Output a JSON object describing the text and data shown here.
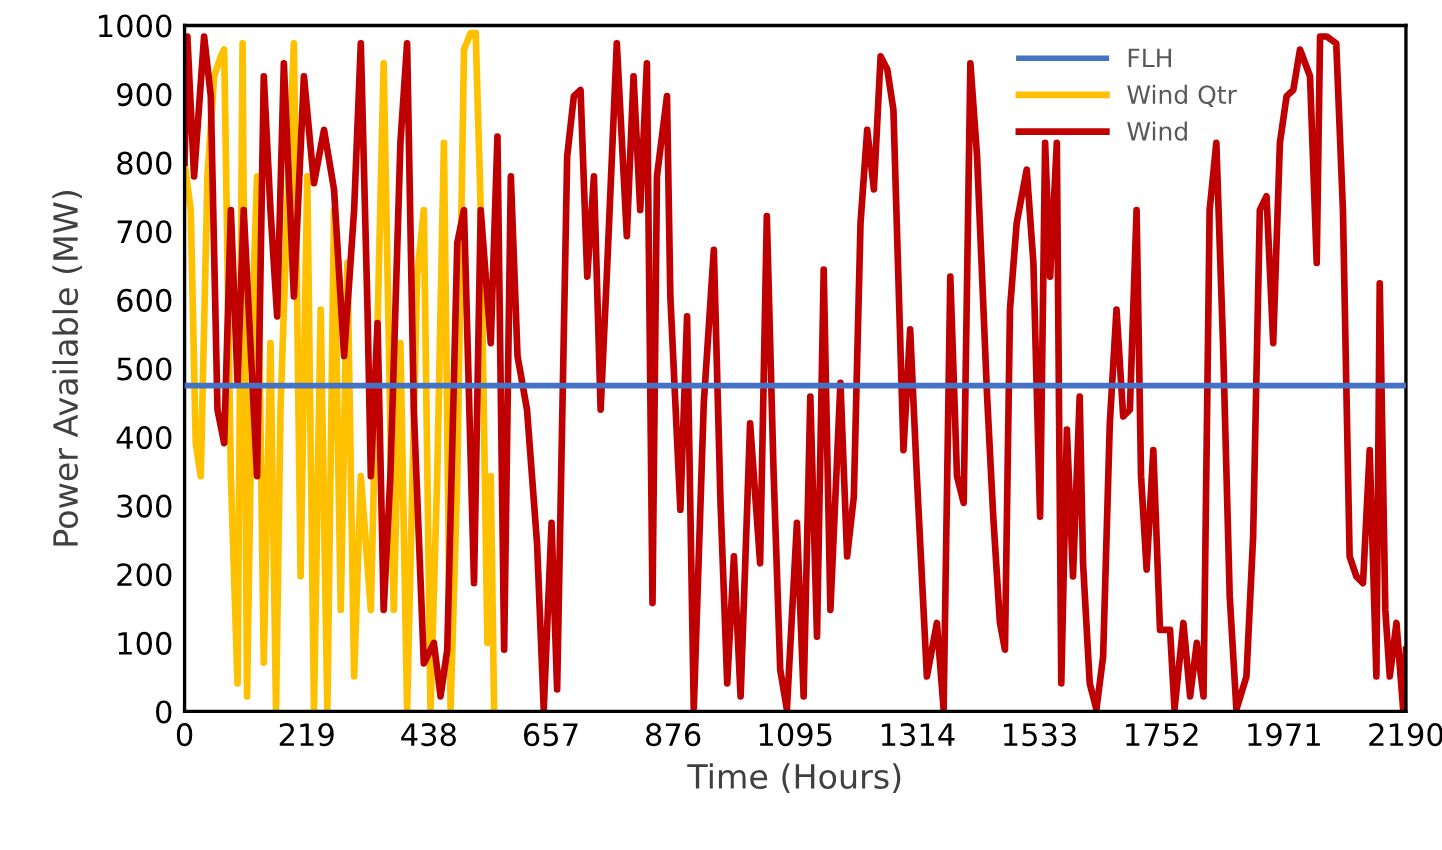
{
  "chart_data": {
    "type": "line",
    "xlabel": "Time (Hours)",
    "ylabel": "Power Available (MW)",
    "xlim": [
      0,
      2190
    ],
    "xticks": [
      0,
      219,
      438,
      657,
      876,
      1095,
      1314,
      1533,
      1752,
      1971,
      2190
    ],
    "ylim": [
      0,
      1000
    ],
    "yticks": [
      0,
      100,
      200,
      300,
      400,
      500,
      600,
      700,
      800,
      900,
      1000
    ],
    "grid": false,
    "legend": "top right",
    "marker": "none",
    "line_style": "solid",
    "series": [
      {
        "name": "FLH",
        "color": "#4472c4",
        "x": [
          0,
          2190
        ],
        "values": [
          475,
          475
        ]
      },
      {
        "name": "Wind Qtr",
        "color": "#ffc000",
        "x": [
          0,
          11,
          20,
          29,
          41,
          53,
          65,
          71,
          83,
          95,
          104,
          112,
          124,
          130,
          142,
          154,
          164,
          172,
          184,
          196,
          208,
          220,
          232,
          244,
          256,
          268,
          280,
          292,
          304,
          316,
          334,
          357,
          375,
          387,
          399,
          417,
          429,
          441,
          453,
          465,
          477,
          489,
          501,
          513,
          522,
          531,
          543,
          549,
          555
        ],
        "values": [
          800,
          731,
          391,
          343,
          780,
          926,
          955,
          965,
          343,
          41,
          974,
          22,
          634,
          780,
          71,
          537,
          3,
          440,
          731,
          974,
          197,
          780,
          3,
          586,
          3,
          731,
          148,
          654,
          51,
          343,
          148,
          945,
          148,
          537,
          3,
          634,
          731,
          3,
          343,
          829,
          3,
          343,
          965,
          989,
          989,
          731,
          100,
          343,
          3
        ]
      },
      {
        "name": "Wind",
        "color": "#c00000",
        "x": [
          0,
          5,
          17,
          35,
          47,
          59,
          71,
          83,
          95,
          106,
          130,
          142,
          154,
          166,
          178,
          196,
          214,
          232,
          250,
          268,
          286,
          304,
          316,
          328,
          334,
          346,
          357,
          369,
          387,
          399,
          411,
          429,
          447,
          459,
          471,
          489,
          501,
          519,
          531,
          549,
          561,
          573,
          585,
          597,
          614,
          632,
          644,
          658,
          668,
          686,
          698,
          710,
          722,
          734,
          746,
          757,
          775,
          793,
          805,
          817,
          829,
          839,
          847,
          865,
          871,
          889,
          901,
          913,
          931,
          949,
          961,
          973,
          985,
          997,
          1014,
          1032,
          1044,
          1056,
          1068,
          1080,
          1098,
          1110,
          1122,
          1134,
          1146,
          1158,
          1176,
          1188,
          1200,
          1212,
          1224,
          1236,
          1248,
          1260,
          1271,
          1289,
          1301,
          1313,
          1331,
          1349,
          1361,
          1373,
          1385,
          1397,
          1409,
          1421,
          1439,
          1450,
          1462,
          1471,
          1480,
          1492,
          1510,
          1522,
          1534,
          1543,
          1552,
          1564,
          1572,
          1582,
          1593,
          1605,
          1611,
          1623,
          1635,
          1647,
          1659,
          1671,
          1683,
          1695,
          1707,
          1715,
          1725,
          1737,
          1749,
          1767,
          1775,
          1791,
          1803,
          1815,
          1827,
          1838,
          1850,
          1862,
          1874,
          1886,
          1904,
          1916,
          1928,
          1940,
          1952,
          1964,
          1976,
          1988,
          2000,
          2018,
          2030,
          2036,
          2048,
          2065,
          2077,
          2089,
          2101,
          2113,
          2125,
          2137,
          2143,
          2153,
          2161,
          2173,
          2185,
          2190
        ],
        "values": [
          800,
          984,
          780,
          984,
          897,
          440,
          391,
          731,
          479,
          731,
          343,
          926,
          731,
          576,
          945,
          605,
          926,
          770,
          848,
          761,
          518,
          731,
          974,
          586,
          343,
          566,
          148,
          343,
          829,
          974,
          440,
          70,
          100,
          22,
          90,
          683,
          731,
          187,
          731,
          537,
          838,
          90,
          780,
          518,
          440,
          245,
          3,
          275,
          32,
          809,
          897,
          906,
          634,
          780,
          440,
          634,
          974,
          693,
          926,
          731,
          945,
          158,
          780,
          897,
          605,
          294,
          576,
          3,
          450,
          673,
          304,
          41,
          226,
          22,
          420,
          216,
          722,
          352,
          61,
          3,
          275,
          22,
          459,
          109,
          644,
          148,
          479,
          226,
          313,
          712,
          848,
          761,
          955,
          936,
          877,
          381,
          557,
          343,
          51,
          129,
          3,
          634,
          343,
          304,
          945,
          809,
          459,
          284,
          129,
          90,
          586,
          712,
          790,
          654,
          284,
          829,
          634,
          829,
          41,
          411,
          197,
          459,
          216,
          41,
          3,
          80,
          420,
          586,
          430,
          440,
          731,
          343,
          207,
          381,
          119,
          119,
          3,
          129,
          22,
          100,
          22,
          731,
          829,
          537,
          168,
          3,
          51,
          255,
          731,
          751,
          537,
          829,
          897,
          906,
          965,
          926,
          654,
          984,
          984,
          974,
          731,
          226,
          197,
          187,
          381,
          51,
          624,
          148,
          51,
          129,
          3,
          90
        ]
      }
    ]
  }
}
